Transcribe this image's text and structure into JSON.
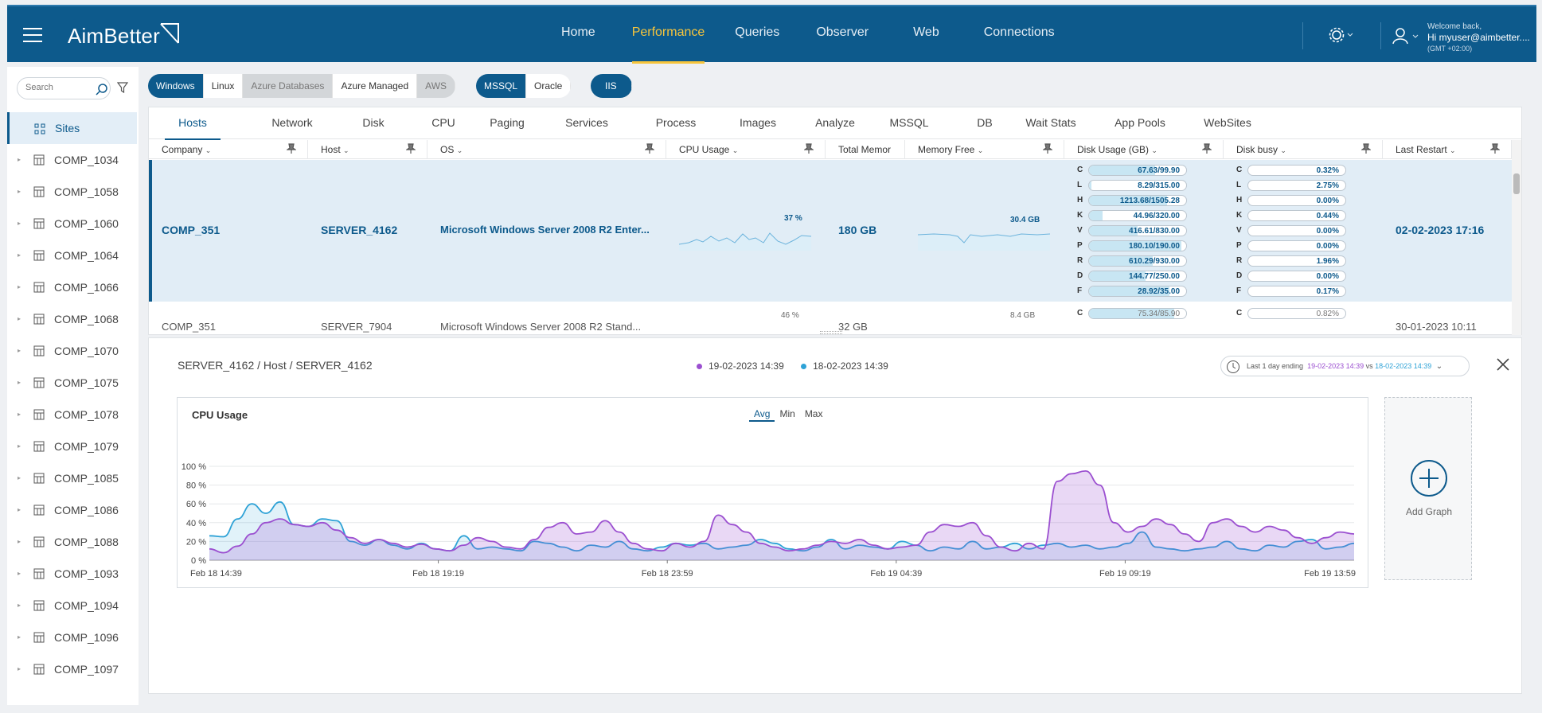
{
  "app": {
    "logo": "AimBetter",
    "nav": [
      "Home",
      "Performance",
      "Queries",
      "Observer",
      "Web",
      "Connections"
    ],
    "active_nav": 1,
    "welcome": "Welcome back,",
    "username": "Hi myuser@aimbetter....",
    "timezone": "(GMT +02:00)"
  },
  "sidebar": {
    "search_placeholder": "Search",
    "root_label": "Sites",
    "companies": [
      "COMP_1034",
      "COMP_1058",
      "COMP_1060",
      "COMP_1064",
      "COMP_1066",
      "COMP_1068",
      "COMP_1070",
      "COMP_1075",
      "COMP_1078",
      "COMP_1079",
      "COMP_1085",
      "COMP_1086",
      "COMP_1088",
      "COMP_1093",
      "COMP_1094",
      "COMP_1096",
      "COMP_1097"
    ]
  },
  "filters": {
    "platforms": [
      {
        "label": "Windows",
        "state": "on"
      },
      {
        "label": "Linux",
        "state": "normal"
      },
      {
        "label": "Azure Databases",
        "state": "off"
      },
      {
        "label": "Azure Managed",
        "state": "normal"
      },
      {
        "label": "AWS",
        "state": "off"
      }
    ],
    "engines": [
      {
        "label": "MSSQL",
        "state": "on"
      },
      {
        "label": "Oracle",
        "state": "normal"
      }
    ],
    "web": [
      {
        "label": "IIS",
        "state": "on"
      }
    ]
  },
  "tabs": [
    "Hosts",
    "Network",
    "Disk",
    "CPU",
    "Paging",
    "Services",
    "Process",
    "Images",
    "Analyze",
    "MSSQL",
    "DB",
    "Wait Stats",
    "App Pools",
    "WebSites"
  ],
  "active_tab": 0,
  "columns": {
    "company": "Company",
    "host": "Host",
    "os": "OS",
    "cpu": "CPU Usage",
    "total_mem": "Total Memor",
    "mem_free": "Memory Free",
    "disk_usage": "Disk Usage (GB)",
    "disk_busy": "Disk busy",
    "last_restart": "Last Restart"
  },
  "row1": {
    "company": "COMP_351",
    "host": "SERVER_4162",
    "os": "Microsoft Windows Server 2008 R2 Enter...",
    "cpu": "37 %",
    "total_mem": "180 GB",
    "mem_free": "30.4 GB",
    "last_restart": "02-02-2023 17:16",
    "disk_usage": [
      {
        "drive": "C",
        "value": "67.63/99.90",
        "ratio": 0.677
      },
      {
        "drive": "L",
        "value": "8.29/315.00",
        "ratio": 0.026
      },
      {
        "drive": "H",
        "value": "1213.68/1505.28",
        "ratio": 0.806
      },
      {
        "drive": "K",
        "value": "44.96/320.00",
        "ratio": 0.14
      },
      {
        "drive": "V",
        "value": "416.61/830.00",
        "ratio": 0.502
      },
      {
        "drive": "P",
        "value": "180.10/190.00",
        "ratio": 0.948
      },
      {
        "drive": "R",
        "value": "610.29/930.00",
        "ratio": 0.656
      },
      {
        "drive": "D",
        "value": "144.77/250.00",
        "ratio": 0.579
      },
      {
        "drive": "F",
        "value": "28.92/35.00",
        "ratio": 0.826
      }
    ],
    "disk_busy": [
      {
        "drive": "C",
        "value": "0.32%"
      },
      {
        "drive": "L",
        "value": "2.75%"
      },
      {
        "drive": "H",
        "value": "0.00%"
      },
      {
        "drive": "K",
        "value": "0.44%"
      },
      {
        "drive": "V",
        "value": "0.00%"
      },
      {
        "drive": "P",
        "value": "0.00%"
      },
      {
        "drive": "R",
        "value": "1.96%"
      },
      {
        "drive": "D",
        "value": "0.00%"
      },
      {
        "drive": "F",
        "value": "0.17%"
      }
    ]
  },
  "row2": {
    "company": "COMP_351",
    "host": "SERVER_7904",
    "os": "Microsoft Windows Server 2008 R2 Stand...",
    "cpu": "46 %",
    "total_mem": "32 GB",
    "mem_free": "8.4 GB",
    "last_restart": "30-01-2023 10:11",
    "disk_c": "75.34/85.90",
    "disk_c_ratio": 0.877,
    "busy_c": "0.82%"
  },
  "detail": {
    "breadcrumb": "SERVER_4162 / Host / SERVER_4162",
    "legend": [
      {
        "label": "19-02-2023 14:39",
        "color": "#9b4fd0"
      },
      {
        "label": "18-02-2023 14:39",
        "color": "#2ea2d6"
      }
    ],
    "range_prefix": "Last 1 day ending",
    "range_current": "19-02-2023 14:39",
    "range_vs": "vs",
    "range_compare": "18-02-2023 14:39",
    "add_graph": "Add Graph",
    "aggregations": [
      "Avg",
      "Min",
      "Max"
    ],
    "active_agg": 0
  },
  "chart_data": {
    "type": "area",
    "title": "CPU Usage",
    "xlabel": "",
    "ylabel": "",
    "ylim": [
      0,
      100
    ],
    "yticks": [
      "0 %",
      "20 %",
      "40 %",
      "60 %",
      "80 %",
      "100 %"
    ],
    "xticks": [
      "Feb 18 14:39",
      "Feb 18 19:19",
      "Feb 18 23:59",
      "Feb 19 04:39",
      "Feb 19 09:19",
      "Feb 19 13:59"
    ],
    "grid": true,
    "series": [
      {
        "name": "19-02-2023 14:39",
        "color": "#9b4fd0",
        "values": [
          12,
          8,
          15,
          28,
          40,
          44,
          38,
          36,
          40,
          32,
          24,
          18,
          22,
          18,
          14,
          17,
          12,
          10,
          16,
          24,
          20,
          14,
          12,
          22,
          35,
          40,
          28,
          30,
          42,
          30,
          18,
          12,
          10,
          18,
          14,
          20,
          48,
          38,
          30,
          18,
          14,
          10,
          12,
          16,
          20,
          18,
          22,
          16,
          12,
          14,
          16,
          30,
          38,
          36,
          40,
          26,
          14,
          10,
          18,
          12,
          84,
          92,
          95,
          80,
          40,
          30,
          36,
          44,
          38,
          28,
          20,
          40,
          44,
          36,
          30,
          36,
          32,
          24,
          18,
          24,
          30,
          28
        ]
      },
      {
        "name": "18-02-2023 14:39",
        "color": "#2ea2d6",
        "values": [
          26,
          25,
          44,
          60,
          50,
          62,
          38,
          36,
          44,
          42,
          20,
          16,
          22,
          16,
          12,
          18,
          12,
          10,
          26,
          12,
          14,
          12,
          10,
          20,
          18,
          14,
          10,
          16,
          14,
          20,
          12,
          10,
          14,
          18,
          16,
          18,
          12,
          14,
          16,
          22,
          18,
          12,
          10,
          14,
          22,
          12,
          16,
          14,
          12,
          20,
          16,
          10,
          14,
          12,
          20,
          12,
          14,
          18,
          12,
          16,
          18,
          14,
          16,
          12,
          14,
          18,
          30,
          14,
          12,
          10,
          12,
          14,
          20,
          12,
          10,
          16,
          14,
          20,
          22,
          12,
          14,
          18
        ]
      }
    ]
  },
  "colors": {
    "brand": "#0d5a8c",
    "active_nav": "#f7c53c"
  }
}
